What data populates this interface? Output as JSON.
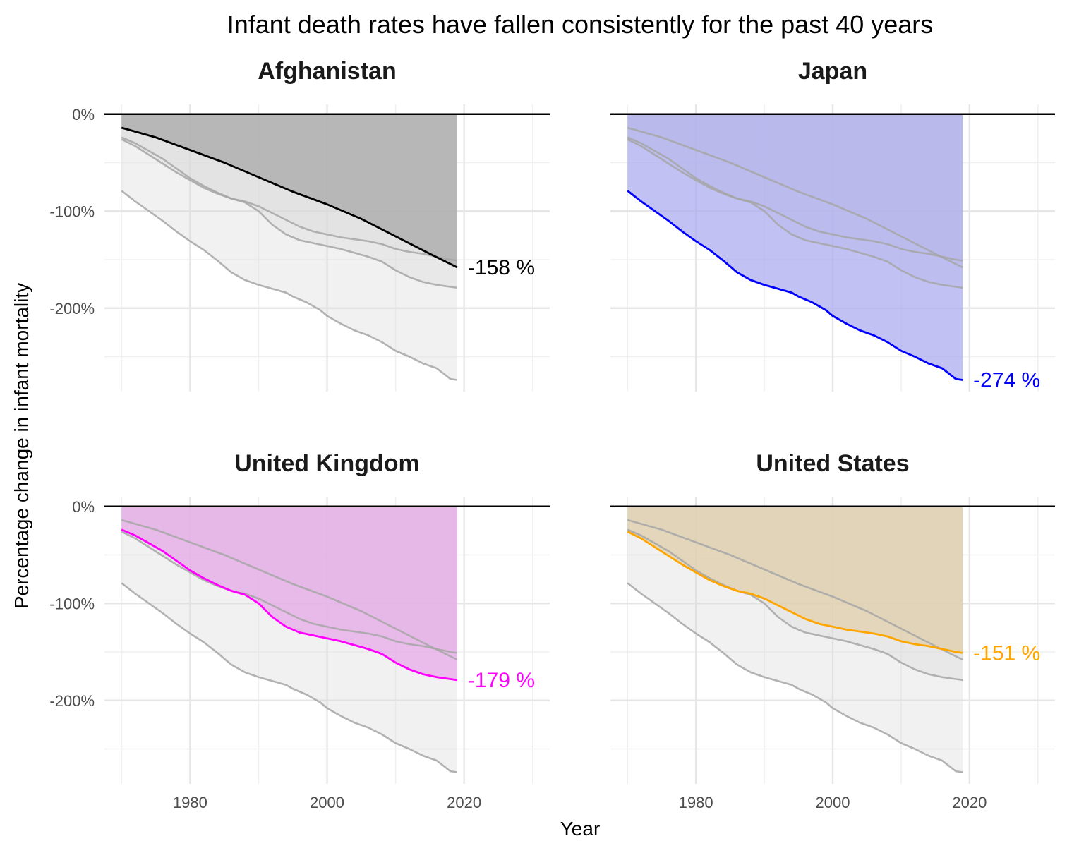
{
  "chart_data": {
    "type": "line",
    "title": "Infant death rates have fallen consistently for the past 40 years",
    "xlabel": "Year",
    "ylabel": "Percentage change in infant mortality",
    "xlim": [
      1967.5,
      2032.5
    ],
    "ylim": [
      -286,
      10
    ],
    "x_ticks": [
      1980,
      2000,
      2020
    ],
    "y_ticks": [
      0,
      -100,
      -200
    ],
    "y_tick_labels": [
      "0%",
      "-100%",
      "-200%"
    ],
    "grid": true,
    "facets": [
      "Afghanistan",
      "Japan",
      "United Kingdom",
      "United States"
    ],
    "end_year": 2019,
    "series": [
      {
        "name": "Afghanistan",
        "color": "#000000",
        "fill": "#a6a6a6",
        "end_label": "-158 %",
        "points": [
          [
            1970,
            -14
          ],
          [
            1975,
            -24
          ],
          [
            1980,
            -37
          ],
          [
            1985,
            -50
          ],
          [
            1990,
            -65
          ],
          [
            1995,
            -80
          ],
          [
            2000,
            -93
          ],
          [
            2005,
            -108
          ],
          [
            2010,
            -126
          ],
          [
            2015,
            -144
          ],
          [
            2019,
            -158
          ]
        ]
      },
      {
        "name": "Japan",
        "color": "#0000ff",
        "fill": "#a9a9f0",
        "end_label": "-274 %",
        "points": [
          [
            1970,
            -79
          ],
          [
            1972,
            -90
          ],
          [
            1974,
            -100
          ],
          [
            1976,
            -110
          ],
          [
            1978,
            -121
          ],
          [
            1980,
            -131
          ],
          [
            1982,
            -140
          ],
          [
            1984,
            -151
          ],
          [
            1986,
            -163
          ],
          [
            1988,
            -171
          ],
          [
            1990,
            -176
          ],
          [
            1992,
            -180
          ],
          [
            1994,
            -184
          ],
          [
            1995,
            -188
          ],
          [
            1997,
            -194
          ],
          [
            1999,
            -202
          ],
          [
            2000,
            -208
          ],
          [
            2002,
            -216
          ],
          [
            2004,
            -223
          ],
          [
            2006,
            -228
          ],
          [
            2008,
            -235
          ],
          [
            2010,
            -244
          ],
          [
            2012,
            -250
          ],
          [
            2014,
            -257
          ],
          [
            2016,
            -262
          ],
          [
            2018,
            -273
          ],
          [
            2019,
            -274
          ]
        ]
      },
      {
        "name": "United Kingdom",
        "color": "#ff00ff",
        "fill": "#e8a8ea",
        "end_label": "-179 %",
        "points": [
          [
            1970,
            -24
          ],
          [
            1972,
            -30
          ],
          [
            1974,
            -38
          ],
          [
            1976,
            -46
          ],
          [
            1978,
            -56
          ],
          [
            1980,
            -66
          ],
          [
            1982,
            -74
          ],
          [
            1984,
            -81
          ],
          [
            1986,
            -87
          ],
          [
            1988,
            -91
          ],
          [
            1990,
            -100
          ],
          [
            1992,
            -114
          ],
          [
            1994,
            -124
          ],
          [
            1996,
            -130
          ],
          [
            1998,
            -133
          ],
          [
            2000,
            -136
          ],
          [
            2002,
            -139
          ],
          [
            2004,
            -143
          ],
          [
            2006,
            -147
          ],
          [
            2008,
            -152
          ],
          [
            2010,
            -161
          ],
          [
            2012,
            -168
          ],
          [
            2014,
            -173
          ],
          [
            2016,
            -176
          ],
          [
            2018,
            -178
          ],
          [
            2019,
            -179
          ]
        ]
      },
      {
        "name": "United States",
        "color": "#ffa500",
        "fill": "#e2cfa8",
        "end_label": "-151 %",
        "points": [
          [
            1970,
            -26
          ],
          [
            1972,
            -33
          ],
          [
            1974,
            -42
          ],
          [
            1976,
            -51
          ],
          [
            1978,
            -60
          ],
          [
            1980,
            -68
          ],
          [
            1982,
            -76
          ],
          [
            1984,
            -82
          ],
          [
            1986,
            -87
          ],
          [
            1988,
            -90
          ],
          [
            1990,
            -95
          ],
          [
            1992,
            -102
          ],
          [
            1994,
            -109
          ],
          [
            1996,
            -116
          ],
          [
            1998,
            -121
          ],
          [
            2000,
            -124
          ],
          [
            2002,
            -127
          ],
          [
            2004,
            -129
          ],
          [
            2006,
            -131
          ],
          [
            2008,
            -134
          ],
          [
            2010,
            -139
          ],
          [
            2012,
            -142
          ],
          [
            2014,
            -144
          ],
          [
            2016,
            -147
          ],
          [
            2018,
            -150
          ],
          [
            2019,
            -151
          ]
        ]
      }
    ]
  }
}
